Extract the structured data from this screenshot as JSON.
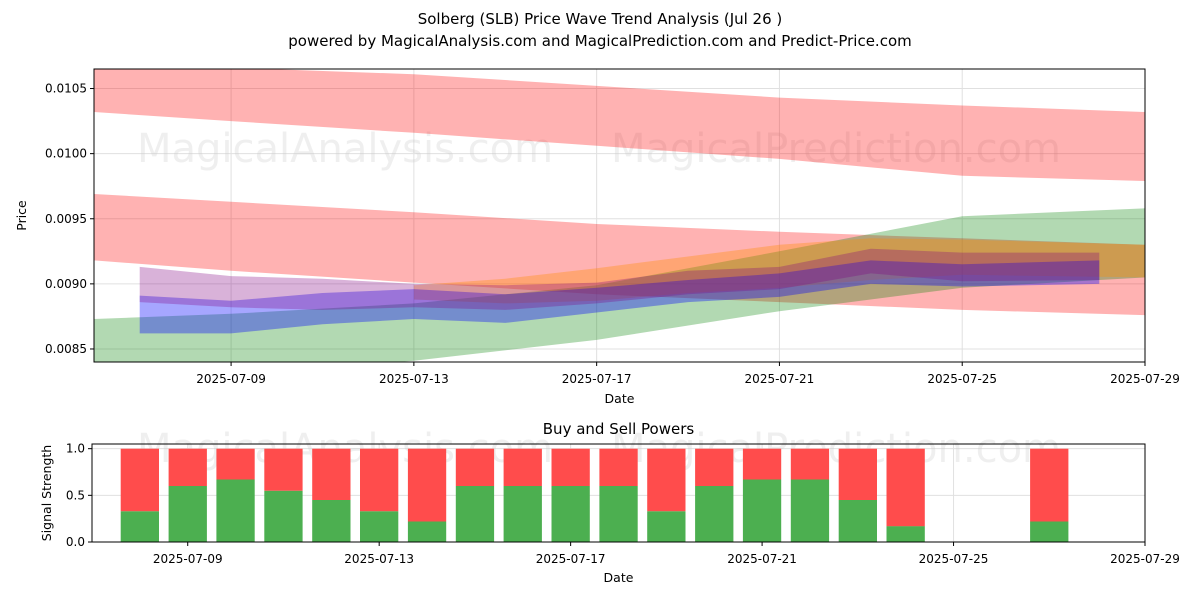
{
  "title": "Solberg (SLB) Price Wave Trend Analysis (Jul 26 )",
  "subtitle": "powered by MagicalAnalysis.com and MagicalPrediction.com and Predict-Price.com",
  "watermarks": [
    "MagicalAnalysis.com",
    "MagicalPrediction.com"
  ],
  "colors": {
    "red": "#ff0000",
    "green": "#008000",
    "blue": "#0000ff",
    "purple": "#800080",
    "orange": "#ff8c00",
    "bar_buy": "#4caf50",
    "bar_sell": "#ff4c4c",
    "grid": "#e0e0e0"
  },
  "chart_data": [
    {
      "type": "area",
      "title": "",
      "xlabel": "Date",
      "ylabel": "Price",
      "x_range": [
        "2025-07-06",
        "2025-07-29"
      ],
      "ylim": [
        0.0084,
        0.01065
      ],
      "x_ticks": [
        "2025-07-09",
        "2025-07-13",
        "2025-07-17",
        "2025-07-21",
        "2025-07-25",
        "2025-07-29"
      ],
      "y_ticks": [
        "0.0085",
        "0.0090",
        "0.0095",
        "0.0100",
        "0.0105"
      ],
      "grid": true,
      "bands": [
        {
          "name": "",
          "color": "red",
          "opacity": 0.3,
          "x": [
            "2025-07-06",
            "2025-07-09",
            "2025-07-13",
            "2025-07-17",
            "2025-07-21",
            "2025-07-25",
            "2025-07-29"
          ],
          "upper": [
            0.01071,
            0.01066,
            0.01061,
            0.01052,
            0.01043,
            0.01037,
            0.01032
          ],
          "lower": [
            0.01032,
            0.01025,
            0.01016,
            0.01006,
            0.00996,
            0.00983,
            0.00979
          ]
        },
        {
          "name": "",
          "color": "red",
          "opacity": 0.3,
          "x": [
            "2025-07-06",
            "2025-07-09",
            "2025-07-13",
            "2025-07-17",
            "2025-07-21",
            "2025-07-25",
            "2025-07-29"
          ],
          "upper": [
            0.00969,
            0.00963,
            0.00955,
            0.00946,
            0.0094,
            0.00935,
            0.0093
          ],
          "lower": [
            0.00918,
            0.0091,
            0.00901,
            0.00892,
            0.00886,
            0.0088,
            0.00876
          ]
        },
        {
          "name": "",
          "color": "green",
          "opacity": 0.3,
          "x": [
            "2025-07-06",
            "2025-07-09",
            "2025-07-13",
            "2025-07-17",
            "2025-07-21",
            "2025-07-25",
            "2025-07-29"
          ],
          "upper": [
            0.00873,
            0.00877,
            0.00885,
            0.00899,
            0.00925,
            0.00952,
            0.00958
          ],
          "lower": [
            0.00835,
            0.00829,
            0.00841,
            0.00857,
            0.00879,
            0.00897,
            0.00905
          ]
        },
        {
          "name": "",
          "color": "orange",
          "opacity": 0.35,
          "x": [
            "2025-07-13",
            "2025-07-15",
            "2025-07-17",
            "2025-07-19",
            "2025-07-21",
            "2025-07-23",
            "2025-07-25",
            "2025-07-29"
          ],
          "upper": [
            0.00899,
            0.00904,
            0.00912,
            0.00921,
            0.0093,
            0.00935,
            0.00934,
            0.0093
          ],
          "lower": [
            0.00888,
            0.00885,
            0.00887,
            0.00893,
            0.00897,
            0.00903,
            0.00907,
            0.00905
          ]
        },
        {
          "name": "",
          "color": "blue",
          "opacity": 0.35,
          "x": [
            "2025-07-07",
            "2025-07-09",
            "2025-07-11",
            "2025-07-13",
            "2025-07-15",
            "2025-07-17",
            "2025-07-19",
            "2025-07-21",
            "2025-07-23",
            "2025-07-25",
            "2025-07-28"
          ],
          "upper": [
            0.00891,
            0.00887,
            0.00893,
            0.00896,
            0.00892,
            0.00897,
            0.00903,
            0.00908,
            0.00918,
            0.00915,
            0.00918
          ],
          "lower": [
            0.00862,
            0.00862,
            0.00869,
            0.00873,
            0.0087,
            0.00878,
            0.00886,
            0.0089,
            0.009,
            0.00898,
            0.009
          ]
        },
        {
          "name": "",
          "color": "purple",
          "opacity": 0.3,
          "x": [
            "2025-07-07",
            "2025-07-09",
            "2025-07-11",
            "2025-07-13",
            "2025-07-15",
            "2025-07-17",
            "2025-07-19",
            "2025-07-21",
            "2025-07-23",
            "2025-07-25",
            "2025-07-28"
          ],
          "upper": [
            0.00913,
            0.00906,
            0.00904,
            0.009,
            0.00899,
            0.00901,
            0.0091,
            0.00913,
            0.00927,
            0.00924,
            0.00924
          ],
          "lower": [
            0.00886,
            0.00882,
            0.0088,
            0.00882,
            0.0088,
            0.00885,
            0.00892,
            0.00896,
            0.00908,
            0.00902,
            0.00903
          ]
        }
      ]
    },
    {
      "type": "bar",
      "title": "Buy and Sell Powers",
      "xlabel": "Date",
      "ylabel": "Signal Strength",
      "x_range": [
        "2025-07-07",
        "2025-07-29"
      ],
      "ylim": [
        0,
        1.05
      ],
      "x_ticks": [
        "2025-07-09",
        "2025-07-13",
        "2025-07-17",
        "2025-07-21",
        "2025-07-25",
        "2025-07-29"
      ],
      "y_ticks": [
        "0.0",
        "0.5",
        "1.0"
      ],
      "grid": true,
      "categories": [
        "2025-07-08",
        "2025-07-09",
        "2025-07-10",
        "2025-07-11",
        "2025-07-12",
        "2025-07-13",
        "2025-07-14",
        "2025-07-15",
        "2025-07-16",
        "2025-07-17",
        "2025-07-18",
        "2025-07-19",
        "2025-07-20",
        "2025-07-21",
        "2025-07-22",
        "2025-07-23",
        "2025-07-24",
        "2025-07-27"
      ],
      "series": [
        {
          "name": "Buy",
          "values": [
            0.33,
            0.6,
            0.67,
            0.55,
            0.45,
            0.33,
            0.22,
            0.6,
            0.6,
            0.6,
            0.6,
            0.33,
            0.6,
            0.67,
            0.67,
            0.45,
            0.17,
            0.22
          ]
        },
        {
          "name": "Sell",
          "values": [
            0.67,
            0.4,
            0.33,
            0.45,
            0.55,
            0.67,
            0.78,
            0.4,
            0.4,
            0.4,
            0.4,
            0.67,
            0.4,
            0.33,
            0.33,
            0.55,
            0.83,
            0.78
          ]
        }
      ]
    }
  ]
}
